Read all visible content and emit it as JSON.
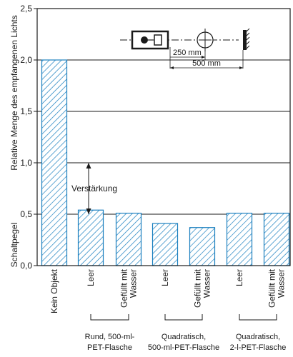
{
  "chart_data": {
    "type": "bar",
    "ylabel_left": "Schaltpegel",
    "ylabel_right": "Relative Menge des empfangenen Lichts",
    "ylim": [
      0,
      2.5
    ],
    "yticks": [
      "0,0",
      "0,5",
      "1,0",
      "1,5",
      "2,0",
      "2,5"
    ],
    "grid": true,
    "categories": [
      "Kein Objekt",
      "Leer",
      "Gefüllt mit Wasser",
      "Leer",
      "Gefüllt mit Wasser",
      "Leer",
      "Gefüllt mit Wasser"
    ],
    "category_lines": [
      [
        "Kein Objekt"
      ],
      [
        "Leer"
      ],
      [
        "Gefüllt mit",
        "Wasser"
      ],
      [
        "Leer"
      ],
      [
        "Gefüllt mit",
        "Wasser"
      ],
      [
        "Leer"
      ],
      [
        "Gefüllt mit",
        "Wasser"
      ]
    ],
    "values": [
      2.0,
      0.54,
      0.51,
      0.41,
      0.37,
      0.51,
      0.51
    ],
    "groups": [
      {
        "lines": [
          "Rund, 500-ml-",
          "PET-Flasche"
        ],
        "members": [
          1,
          2
        ]
      },
      {
        "lines": [
          "Quadratisch,",
          "500-ml-PET-Flasche"
        ],
        "members": [
          3,
          4
        ]
      },
      {
        "lines": [
          "Quadratisch,",
          "2-l-PET-Flasche"
        ],
        "members": [
          5,
          6
        ]
      }
    ],
    "annotation": {
      "text": "Verstärkung",
      "from": 0.5,
      "to": 1.0
    },
    "diagram": {
      "dim_short": "250 mm",
      "dim_long": "500 mm"
    },
    "bar_color": "#1a7fbf"
  }
}
